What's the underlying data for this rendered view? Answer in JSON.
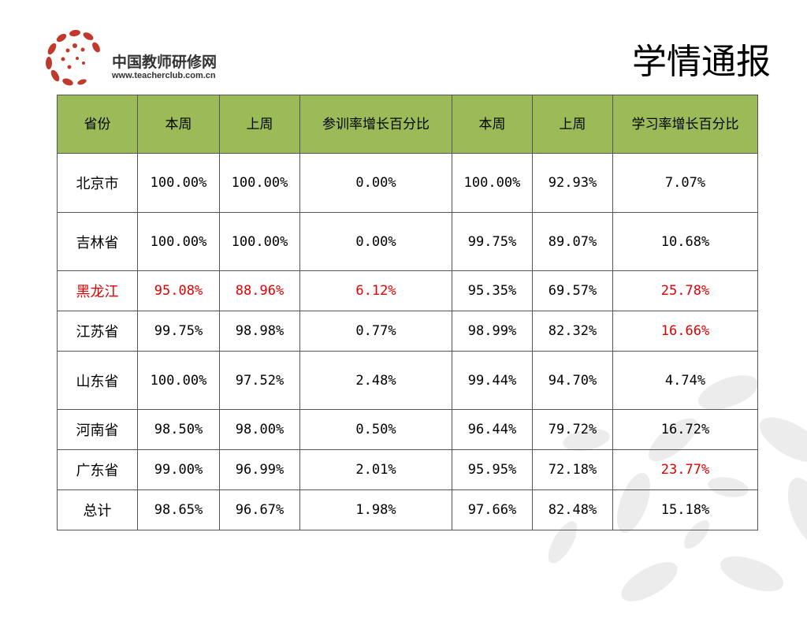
{
  "header": {
    "logo_cn": "中国教师研修网",
    "logo_url": "www.teacherclub.com.cn",
    "title": "学情通报"
  },
  "colors": {
    "header_bg": "#9bbb59",
    "highlight": "#e00000",
    "logo_red": "#c0392b"
  },
  "table": {
    "columns": [
      "省份",
      "本周",
      "上周",
      "参训率增长百分比",
      "本周",
      "上周",
      "学习率增长百分比"
    ],
    "rows": [
      {
        "cells": [
          "北京市",
          "100.00%",
          "100.00%",
          "0.00%",
          "100.00%",
          "92.93%",
          "7.07%"
        ],
        "red": [
          false,
          false,
          false,
          false,
          false,
          false,
          false
        ]
      },
      {
        "cells": [
          "吉林省",
          "100.00%",
          "100.00%",
          "0.00%",
          "99.75%",
          "89.07%",
          "10.68%"
        ],
        "red": [
          false,
          false,
          false,
          false,
          false,
          false,
          false
        ]
      },
      {
        "cells": [
          "黑龙江",
          "95.08%",
          "88.96%",
          "6.12%",
          "95.35%",
          "69.57%",
          "25.78%"
        ],
        "red": [
          true,
          true,
          true,
          true,
          false,
          false,
          true
        ]
      },
      {
        "cells": [
          "江苏省",
          "99.75%",
          "98.98%",
          "0.77%",
          "98.99%",
          "82.32%",
          "16.66%"
        ],
        "red": [
          false,
          false,
          false,
          false,
          false,
          false,
          true
        ]
      },
      {
        "cells": [
          "山东省",
          "100.00%",
          "97.52%",
          "2.48%",
          "99.44%",
          "94.70%",
          "4.74%"
        ],
        "red": [
          false,
          false,
          false,
          false,
          false,
          false,
          false
        ]
      },
      {
        "cells": [
          "河南省",
          "98.50%",
          "98.00%",
          "0.50%",
          "96.44%",
          "79.72%",
          "16.72%"
        ],
        "red": [
          false,
          false,
          false,
          false,
          false,
          false,
          false
        ]
      },
      {
        "cells": [
          "广东省",
          "99.00%",
          "96.99%",
          "2.01%",
          "95.95%",
          "72.18%",
          "23.77%"
        ],
        "red": [
          false,
          false,
          false,
          false,
          false,
          false,
          true
        ]
      },
      {
        "cells": [
          "总计",
          "98.65%",
          "96.67%",
          "1.98%",
          "97.66%",
          "82.48%",
          "15.18%"
        ],
        "red": [
          false,
          false,
          false,
          false,
          false,
          false,
          false
        ]
      }
    ]
  }
}
